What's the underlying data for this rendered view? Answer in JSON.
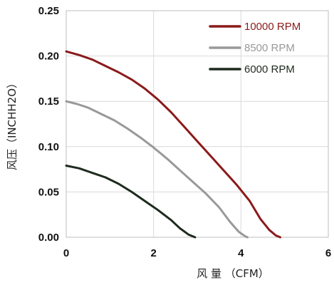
{
  "chart_data": {
    "type": "line",
    "xlabel": "风 量 （CFM）",
    "ylabel": "风压（INCHH2O）",
    "xlim": [
      0,
      6
    ],
    "ylim": [
      0,
      0.25
    ],
    "x_ticks": [
      "0",
      "2",
      "4",
      "6"
    ],
    "y_ticks": [
      "0.00",
      "0.05",
      "0.10",
      "0.15",
      "0.20",
      "0.25"
    ],
    "grid": true,
    "legend_position": "top-right",
    "series": [
      {
        "name": "10000 RPM",
        "color": "#8b1a1a",
        "x": [
          0,
          0.3,
          0.6,
          0.9,
          1.2,
          1.5,
          1.8,
          2.1,
          2.4,
          2.7,
          3.0,
          3.3,
          3.6,
          3.9,
          4.2,
          4.45,
          4.65,
          4.8,
          4.9
        ],
        "y": [
          0.205,
          0.201,
          0.196,
          0.189,
          0.182,
          0.174,
          0.164,
          0.152,
          0.138,
          0.122,
          0.106,
          0.09,
          0.074,
          0.058,
          0.04,
          0.02,
          0.008,
          0.002,
          0.0
        ]
      },
      {
        "name": "8500 RPM",
        "color": "#999999",
        "x": [
          0,
          0.25,
          0.5,
          0.8,
          1.1,
          1.4,
          1.7,
          2.0,
          2.3,
          2.6,
          2.9,
          3.2,
          3.5,
          3.75,
          3.95,
          4.1,
          4.15
        ],
        "y": [
          0.15,
          0.147,
          0.143,
          0.136,
          0.129,
          0.12,
          0.11,
          0.099,
          0.087,
          0.074,
          0.061,
          0.048,
          0.033,
          0.017,
          0.006,
          0.001,
          0.0
        ]
      },
      {
        "name": "6000 RPM",
        "color": "#1e2a1e",
        "x": [
          0,
          0.3,
          0.6,
          0.9,
          1.2,
          1.5,
          1.8,
          2.1,
          2.4,
          2.6,
          2.8,
          2.95
        ],
        "y": [
          0.079,
          0.076,
          0.071,
          0.066,
          0.059,
          0.05,
          0.04,
          0.03,
          0.019,
          0.01,
          0.003,
          0.0
        ]
      }
    ]
  }
}
